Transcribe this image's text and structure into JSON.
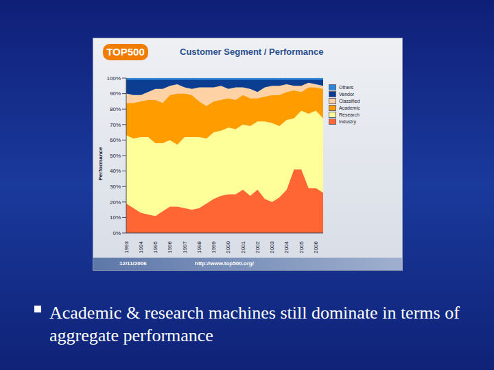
{
  "chart_data": {
    "type": "area",
    "title": "Customer Segment / Performance",
    "y_label": "Performance",
    "stacked": true,
    "grid": true,
    "legend": "right",
    "categories": [
      "1993",
      null,
      "1994",
      null,
      "1995",
      null,
      "1996",
      null,
      "1997",
      null,
      "1998",
      null,
      "1999",
      null,
      "2000",
      null,
      "2001",
      null,
      "2002",
      null,
      "2003",
      null,
      "2004",
      null,
      "2005",
      null,
      "2006",
      null
    ],
    "ylim": [
      0,
      100
    ],
    "yticks": [
      {
        "value": 0,
        "label": "0%"
      },
      {
        "value": 10,
        "label": "10%"
      },
      {
        "value": 20,
        "label": "20%"
      },
      {
        "value": 30,
        "label": "30%"
      },
      {
        "value": 40,
        "label": "40%"
      },
      {
        "value": 50,
        "label": "50%"
      },
      {
        "value": 60,
        "label": "60%"
      },
      {
        "value": 70,
        "label": "70%"
      },
      {
        "value": 80,
        "label": "80%"
      },
      {
        "value": 90,
        "label": "90%"
      },
      {
        "value": 100,
        "label": "100%"
      }
    ],
    "series": [
      {
        "name": "Others",
        "color": "#2a86d8",
        "values": [
          1,
          1,
          1,
          1,
          1,
          1,
          1,
          1,
          1,
          1,
          1,
          1,
          1,
          1,
          1,
          1,
          1,
          1,
          1,
          1,
          1,
          1,
          1,
          1,
          1,
          1,
          1,
          1
        ]
      },
      {
        "name": "Vendor",
        "color": "#0b3d91",
        "values": [
          9,
          10,
          10,
          8,
          6,
          6,
          4,
          3,
          5,
          6,
          5,
          5,
          5,
          4,
          6,
          5,
          5,
          6,
          8,
          5,
          4,
          4,
          3,
          4,
          4,
          2,
          3,
          4
        ]
      },
      {
        "name": "Classified",
        "color": "#ffd2a6",
        "values": [
          6,
          5,
          4,
          5,
          7,
          9,
          6,
          6,
          4,
          4,
          9,
          12,
          9,
          9,
          6,
          8,
          5,
          6,
          4,
          6,
          6,
          6,
          5,
          3,
          4,
          3,
          2,
          2
        ]
      },
      {
        "name": "Academic",
        "color": "#ff9c00",
        "values": [
          21,
          23,
          23,
          24,
          28,
          26,
          29,
          33,
          28,
          27,
          23,
          21,
          20,
          20,
          19,
          19,
          19,
          18,
          15,
          16,
          18,
          20,
          18,
          18,
          12,
          17,
          15,
          19
        ]
      },
      {
        "name": "Research",
        "color": "#ffff99",
        "values": [
          44,
          45,
          49,
          50,
          47,
          44,
          43,
          40,
          46,
          47,
          46,
          42,
          43,
          42,
          43,
          42,
          42,
          45,
          44,
          50,
          51,
          46,
          45,
          33,
          38,
          48,
          50,
          48
        ]
      },
      {
        "name": "Industry",
        "color": "#ff6633",
        "values": [
          19,
          16,
          13,
          12,
          11,
          14,
          17,
          17,
          16,
          15,
          16,
          19,
          22,
          24,
          25,
          25,
          28,
          24,
          28,
          22,
          20,
          23,
          28,
          41,
          41,
          29,
          29,
          26
        ]
      }
    ]
  },
  "slide": {
    "logo": "TOP500",
    "footer_date": "12/11/2006",
    "footer_url": "http://www.top500.org/",
    "bullet": "Academic & research machines still dominate in terms of aggregate performance"
  }
}
